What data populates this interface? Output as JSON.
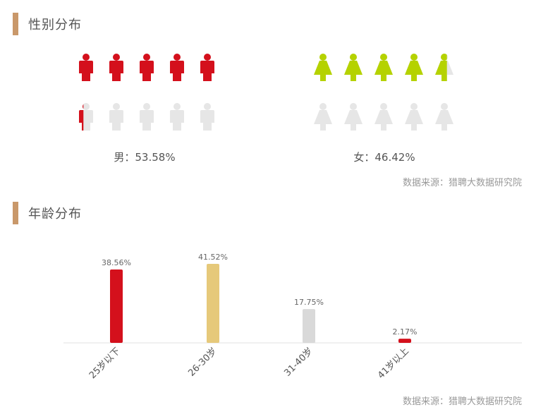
{
  "sections": {
    "gender_title": "性别分布",
    "age_title": "年龄分布"
  },
  "gender": {
    "male_label": "男：53.58%",
    "female_label": "女：46.42%",
    "male_share": 0.5358,
    "female_share": 0.4642,
    "icons_per_group": 10,
    "male_color": "#d4101c",
    "female_color": "#b5d200",
    "empty_color": "#e6e6e6"
  },
  "source_text": "数据来源：猎聘大数据研究院",
  "chart_data": {
    "type": "bar",
    "categories": [
      "25岁以下",
      "26-30岁",
      "31-40岁",
      "41岁以上"
    ],
    "values": [
      38.56,
      41.52,
      17.75,
      2.17
    ],
    "data_labels": [
      "38.56%",
      "41.52%",
      "17.75%",
      "2.17%"
    ],
    "colors": [
      "#d4101c",
      "#e6c97a",
      "#d9d9d9",
      "#d4101c"
    ],
    "ylim": [
      0,
      41.52
    ],
    "grid": false,
    "title": "",
    "xlabel": "",
    "ylabel": ""
  }
}
